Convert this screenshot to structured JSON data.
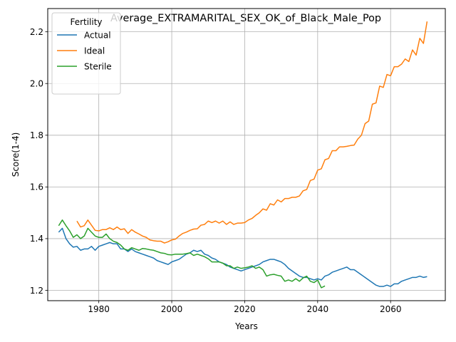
{
  "chart_data": {
    "type": "line",
    "title": "Average_EXTRAMARITAL_SEX_OK_of_Black_Male_Pop",
    "xlabel": "Years",
    "ylabel": "Score(1-4)",
    "xlim": [
      1966,
      2075
    ],
    "ylim": [
      1.16,
      2.29
    ],
    "xticks": [
      1980,
      2000,
      2020,
      2040,
      2060
    ],
    "yticks": [
      1.2,
      1.4,
      1.6,
      1.8,
      2.0,
      2.2
    ],
    "grid": true,
    "legend": {
      "title": "Fertility",
      "position": "top-left"
    },
    "series": [
      {
        "name": "Actual",
        "color": "#1f77b4",
        "points": [
          [
            1969,
            1.425
          ],
          [
            1970,
            1.44
          ],
          [
            1971,
            1.4
          ],
          [
            1972,
            1.38
          ],
          [
            1973,
            1.367
          ],
          [
            1974,
            1.37
          ],
          [
            1975,
            1.355
          ],
          [
            1976,
            1.36
          ],
          [
            1977,
            1.36
          ],
          [
            1978,
            1.37
          ],
          [
            1979,
            1.355
          ],
          [
            1980,
            1.37
          ],
          [
            1981,
            1.375
          ],
          [
            1982,
            1.38
          ],
          [
            1983,
            1.385
          ],
          [
            1984,
            1.38
          ],
          [
            1985,
            1.38
          ],
          [
            1986,
            1.36
          ],
          [
            1987,
            1.36
          ],
          [
            1988,
            1.35
          ],
          [
            1989,
            1.36
          ],
          [
            1990,
            1.35
          ],
          [
            1991,
            1.345
          ],
          [
            1992,
            1.34
          ],
          [
            1993,
            1.335
          ],
          [
            1994,
            1.33
          ],
          [
            1995,
            1.325
          ],
          [
            1996,
            1.315
          ],
          [
            1997,
            1.31
          ],
          [
            1998,
            1.305
          ],
          [
            1999,
            1.3
          ],
          [
            2000,
            1.31
          ],
          [
            2001,
            1.315
          ],
          [
            2002,
            1.32
          ],
          [
            2003,
            1.33
          ],
          [
            2004,
            1.34
          ],
          [
            2005,
            1.345
          ],
          [
            2006,
            1.355
          ],
          [
            2007,
            1.35
          ],
          [
            2008,
            1.355
          ],
          [
            2009,
            1.34
          ],
          [
            2010,
            1.335
          ],
          [
            2011,
            1.325
          ],
          [
            2012,
            1.32
          ],
          [
            2013,
            1.31
          ],
          [
            2014,
            1.305
          ],
          [
            2015,
            1.3
          ],
          [
            2016,
            1.29
          ],
          [
            2017,
            1.285
          ],
          [
            2018,
            1.28
          ],
          [
            2019,
            1.275
          ],
          [
            2020,
            1.28
          ],
          [
            2021,
            1.285
          ],
          [
            2022,
            1.29
          ],
          [
            2023,
            1.295
          ],
          [
            2024,
            1.3
          ],
          [
            2025,
            1.31
          ],
          [
            2026,
            1.315
          ],
          [
            2027,
            1.32
          ],
          [
            2028,
            1.32
          ],
          [
            2029,
            1.315
          ],
          [
            2030,
            1.31
          ],
          [
            2031,
            1.3
          ],
          [
            2032,
            1.285
          ],
          [
            2033,
            1.275
          ],
          [
            2034,
            1.265
          ],
          [
            2035,
            1.255
          ],
          [
            2036,
            1.25
          ],
          [
            2037,
            1.25
          ],
          [
            2038,
            1.245
          ],
          [
            2039,
            1.24
          ],
          [
            2040,
            1.245
          ],
          [
            2041,
            1.24
          ],
          [
            2042,
            1.255
          ],
          [
            2043,
            1.26
          ],
          [
            2044,
            1.27
          ],
          [
            2045,
            1.275
          ],
          [
            2046,
            1.28
          ],
          [
            2047,
            1.285
          ],
          [
            2048,
            1.29
          ],
          [
            2049,
            1.28
          ],
          [
            2050,
            1.28
          ],
          [
            2051,
            1.27
          ],
          [
            2052,
            1.26
          ],
          [
            2053,
            1.25
          ],
          [
            2054,
            1.24
          ],
          [
            2055,
            1.23
          ],
          [
            2056,
            1.22
          ],
          [
            2057,
            1.215
          ],
          [
            2058,
            1.215
          ],
          [
            2059,
            1.22
          ],
          [
            2060,
            1.215
          ],
          [
            2061,
            1.225
          ],
          [
            2062,
            1.225
          ],
          [
            2063,
            1.235
          ],
          [
            2064,
            1.24
          ],
          [
            2065,
            1.245
          ],
          [
            2066,
            1.25
          ],
          [
            2067,
            1.25
          ],
          [
            2068,
            1.255
          ],
          [
            2069,
            1.25
          ],
          [
            2070,
            1.253
          ]
        ]
      },
      {
        "name": "Ideal",
        "color": "#ff7f0e",
        "points": [
          [
            1974,
            1.468
          ],
          [
            1975,
            1.445
          ],
          [
            1976,
            1.45
          ],
          [
            1977,
            1.472
          ],
          [
            1978,
            1.452
          ],
          [
            1979,
            1.432
          ],
          [
            1980,
            1.43
          ],
          [
            1981,
            1.435
          ],
          [
            1982,
            1.435
          ],
          [
            1983,
            1.442
          ],
          [
            1984,
            1.435
          ],
          [
            1985,
            1.445
          ],
          [
            1986,
            1.435
          ],
          [
            1987,
            1.438
          ],
          [
            1988,
            1.42
          ],
          [
            1989,
            1.435
          ],
          [
            1990,
            1.425
          ],
          [
            1991,
            1.418
          ],
          [
            1992,
            1.41
          ],
          [
            1993,
            1.405
          ],
          [
            1994,
            1.395
          ],
          [
            1995,
            1.392
          ],
          [
            1996,
            1.39
          ],
          [
            1997,
            1.39
          ],
          [
            1998,
            1.383
          ],
          [
            1999,
            1.388
          ],
          [
            2000,
            1.395
          ],
          [
            2001,
            1.398
          ],
          [
            2002,
            1.41
          ],
          [
            2003,
            1.42
          ],
          [
            2004,
            1.425
          ],
          [
            2005,
            1.432
          ],
          [
            2006,
            1.437
          ],
          [
            2007,
            1.438
          ],
          [
            2008,
            1.452
          ],
          [
            2009,
            1.455
          ],
          [
            2010,
            1.468
          ],
          [
            2011,
            1.462
          ],
          [
            2012,
            1.468
          ],
          [
            2013,
            1.46
          ],
          [
            2014,
            1.468
          ],
          [
            2015,
            1.455
          ],
          [
            2016,
            1.465
          ],
          [
            2017,
            1.455
          ],
          [
            2018,
            1.46
          ],
          [
            2019,
            1.46
          ],
          [
            2020,
            1.462
          ],
          [
            2021,
            1.472
          ],
          [
            2022,
            1.478
          ],
          [
            2023,
            1.49
          ],
          [
            2024,
            1.5
          ],
          [
            2025,
            1.515
          ],
          [
            2026,
            1.51
          ],
          [
            2027,
            1.535
          ],
          [
            2028,
            1.53
          ],
          [
            2029,
            1.55
          ],
          [
            2030,
            1.542
          ],
          [
            2031,
            1.555
          ],
          [
            2032,
            1.555
          ],
          [
            2033,
            1.56
          ],
          [
            2034,
            1.56
          ],
          [
            2035,
            1.565
          ],
          [
            2036,
            1.585
          ],
          [
            2037,
            1.59
          ],
          [
            2038,
            1.625
          ],
          [
            2039,
            1.63
          ],
          [
            2040,
            1.665
          ],
          [
            2041,
            1.67
          ],
          [
            2042,
            1.705
          ],
          [
            2043,
            1.71
          ],
          [
            2044,
            1.74
          ],
          [
            2045,
            1.74
          ],
          [
            2046,
            1.755
          ],
          [
            2047,
            1.755
          ],
          [
            2048,
            1.757
          ],
          [
            2049,
            1.76
          ],
          [
            2050,
            1.762
          ],
          [
            2051,
            1.785
          ],
          [
            2052,
            1.8
          ],
          [
            2053,
            1.845
          ],
          [
            2054,
            1.855
          ],
          [
            2055,
            1.92
          ],
          [
            2056,
            1.925
          ],
          [
            2057,
            1.99
          ],
          [
            2058,
            1.985
          ],
          [
            2059,
            2.035
          ],
          [
            2060,
            2.03
          ],
          [
            2061,
            2.065
          ],
          [
            2062,
            2.065
          ],
          [
            2063,
            2.075
          ],
          [
            2064,
            2.095
          ],
          [
            2065,
            2.085
          ],
          [
            2066,
            2.13
          ],
          [
            2067,
            2.11
          ],
          [
            2068,
            2.175
          ],
          [
            2069,
            2.155
          ],
          [
            2070,
            2.24
          ]
        ]
      },
      {
        "name": "Sterile",
        "color": "#2ca02c",
        "points": [
          [
            1969,
            1.45
          ],
          [
            1970,
            1.472
          ],
          [
            1971,
            1.45
          ],
          [
            1972,
            1.43
          ],
          [
            1973,
            1.405
          ],
          [
            1974,
            1.415
          ],
          [
            1975,
            1.4
          ],
          [
            1976,
            1.41
          ],
          [
            1977,
            1.44
          ],
          [
            1978,
            1.425
          ],
          [
            1979,
            1.41
          ],
          [
            1980,
            1.405
          ],
          [
            1981,
            1.405
          ],
          [
            1982,
            1.418
          ],
          [
            1983,
            1.4
          ],
          [
            1984,
            1.39
          ],
          [
            1985,
            1.385
          ],
          [
            1986,
            1.375
          ],
          [
            1987,
            1.36
          ],
          [
            1988,
            1.355
          ],
          [
            1989,
            1.365
          ],
          [
            1990,
            1.36
          ],
          [
            1991,
            1.355
          ],
          [
            1992,
            1.362
          ],
          [
            1993,
            1.36
          ],
          [
            1994,
            1.357
          ],
          [
            1995,
            1.355
          ],
          [
            1996,
            1.35
          ],
          [
            1997,
            1.345
          ],
          [
            1998,
            1.343
          ],
          [
            1999,
            1.338
          ],
          [
            2000,
            1.337
          ],
          [
            2001,
            1.34
          ],
          [
            2002,
            1.34
          ],
          [
            2003,
            1.34
          ],
          [
            2004,
            1.342
          ],
          [
            2005,
            1.345
          ],
          [
            2006,
            1.335
          ],
          [
            2007,
            1.34
          ],
          [
            2008,
            1.335
          ],
          [
            2009,
            1.33
          ],
          [
            2010,
            1.322
          ],
          [
            2011,
            1.31
          ],
          [
            2012,
            1.31
          ],
          [
            2013,
            1.31
          ],
          [
            2014,
            1.305
          ],
          [
            2015,
            1.295
          ],
          [
            2016,
            1.295
          ],
          [
            2017,
            1.285
          ],
          [
            2018,
            1.29
          ],
          [
            2019,
            1.285
          ],
          [
            2020,
            1.287
          ],
          [
            2021,
            1.29
          ],
          [
            2022,
            1.295
          ],
          [
            2023,
            1.285
          ],
          [
            2024,
            1.29
          ],
          [
            2025,
            1.28
          ],
          [
            2026,
            1.255
          ],
          [
            2027,
            1.26
          ],
          [
            2028,
            1.262
          ],
          [
            2029,
            1.258
          ],
          [
            2030,
            1.255
          ],
          [
            2031,
            1.235
          ],
          [
            2032,
            1.24
          ],
          [
            2033,
            1.235
          ],
          [
            2034,
            1.245
          ],
          [
            2035,
            1.235
          ],
          [
            2036,
            1.248
          ],
          [
            2037,
            1.255
          ],
          [
            2038,
            1.235
          ],
          [
            2039,
            1.23
          ],
          [
            2040,
            1.24
          ],
          [
            2041,
            1.21
          ],
          [
            2042,
            1.217
          ]
        ]
      }
    ]
  }
}
